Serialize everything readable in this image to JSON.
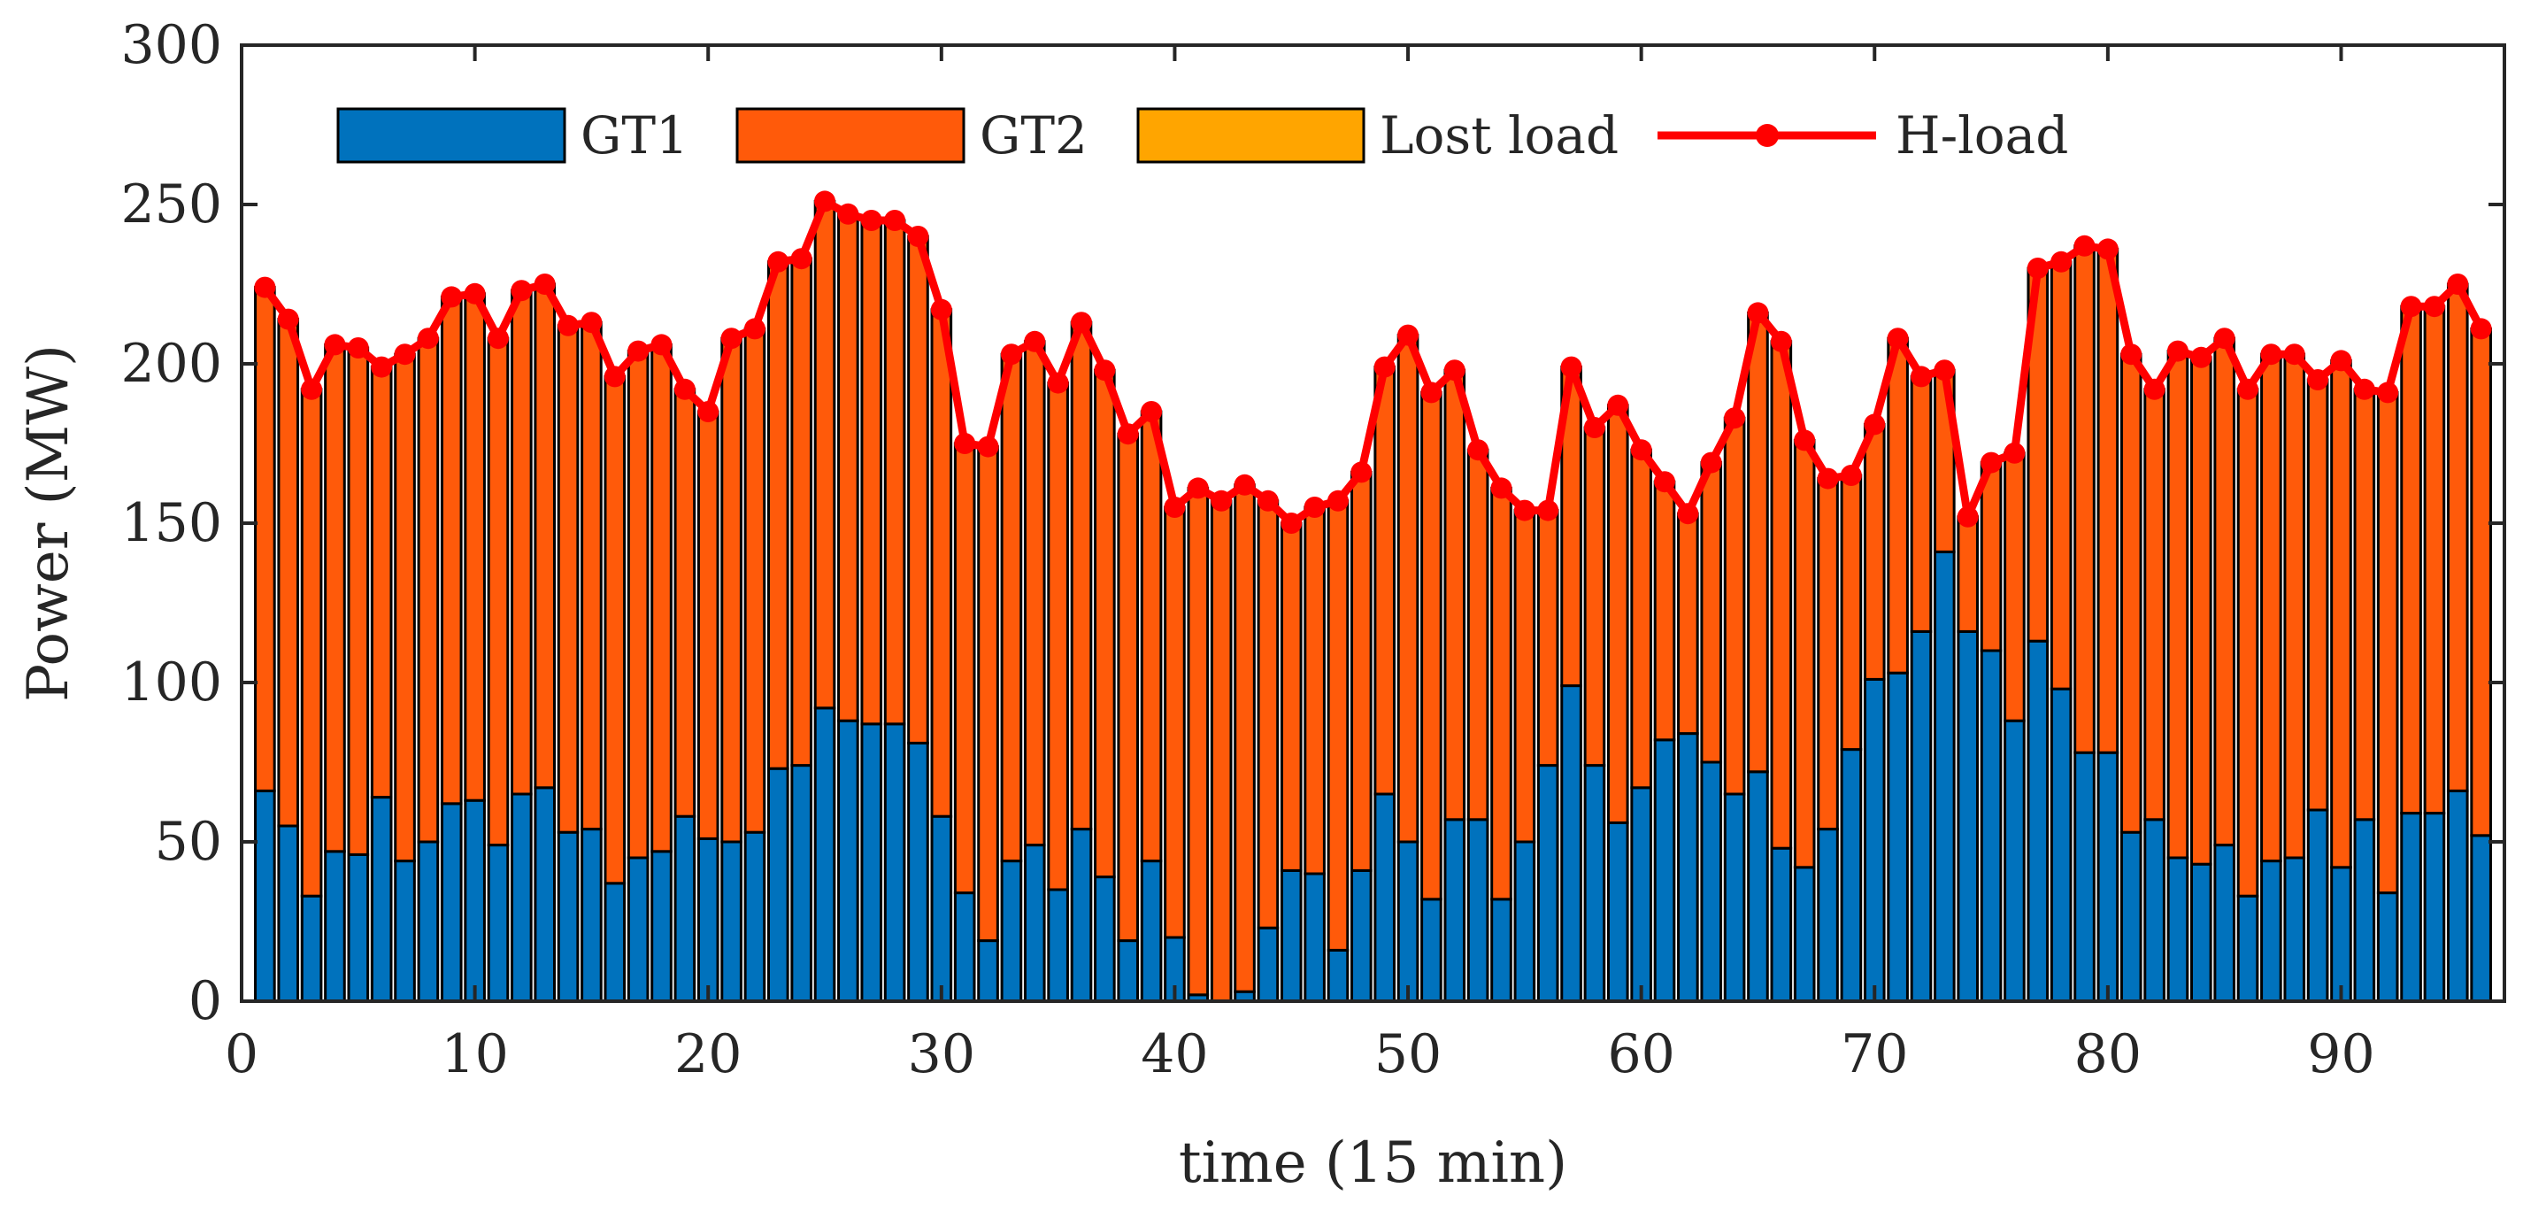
{
  "chart_data": {
    "type": "bar",
    "stacked": true,
    "title": "",
    "xlabel": "time (15 min)",
    "ylabel": "Power (MW)",
    "xlim": [
      0,
      97
    ],
    "ylim": [
      0,
      300
    ],
    "xticks": [
      0,
      10,
      20,
      30,
      40,
      50,
      60,
      70,
      80,
      90
    ],
    "yticks": [
      0,
      50,
      100,
      150,
      200,
      250,
      300
    ],
    "legend_position": "top",
    "x": [
      1,
      2,
      3,
      4,
      5,
      6,
      7,
      8,
      9,
      10,
      11,
      12,
      13,
      14,
      15,
      16,
      17,
      18,
      19,
      20,
      21,
      22,
      23,
      24,
      25,
      26,
      27,
      28,
      29,
      30,
      31,
      32,
      33,
      34,
      35,
      36,
      37,
      38,
      39,
      40,
      41,
      42,
      43,
      44,
      45,
      46,
      47,
      48,
      49,
      50,
      51,
      52,
      53,
      54,
      55,
      56,
      57,
      58,
      59,
      60,
      61,
      62,
      63,
      64,
      65,
      66,
      67,
      68,
      69,
      70,
      71,
      72,
      73,
      74,
      75,
      76,
      77,
      78,
      79,
      80,
      81,
      82,
      83,
      84,
      85,
      86,
      87,
      88,
      89,
      90,
      91,
      92,
      93,
      94,
      95,
      96
    ],
    "series": [
      {
        "name": "GT1",
        "kind": "bar",
        "color": "#0072BD",
        "values": [
          66,
          55,
          33,
          47,
          46,
          64,
          44,
          50,
          62,
          63,
          49,
          65,
          67,
          53,
          54,
          37,
          45,
          47,
          58,
          51,
          50,
          53,
          73,
          74,
          92,
          88,
          87,
          87,
          81,
          58,
          34,
          19,
          44,
          49,
          35,
          54,
          39,
          19,
          44,
          20,
          2,
          0,
          3,
          23,
          41,
          40,
          16,
          41,
          65,
          50,
          32,
          57,
          57,
          32,
          50,
          74,
          99,
          74,
          56,
          67,
          82,
          84,
          75,
          65,
          72,
          48,
          42,
          54,
          79,
          101,
          103,
          116,
          141,
          116,
          110,
          88,
          113,
          98,
          78,
          78,
          53,
          57,
          45,
          43,
          49,
          33,
          44,
          45,
          60,
          42,
          57,
          34,
          59,
          59,
          66,
          52
        ]
      },
      {
        "name": "GT2",
        "kind": "bar",
        "color": "#FF5A0A",
        "values": [
          158,
          159,
          159,
          159,
          159,
          135,
          159,
          158,
          159,
          159,
          159,
          158,
          158,
          159,
          159,
          159,
          159,
          159,
          134,
          134,
          158,
          158,
          159,
          159,
          159,
          159,
          158,
          158,
          159,
          159,
          141,
          155,
          159,
          158,
          159,
          159,
          159,
          159,
          141,
          135,
          159,
          157,
          159,
          134,
          109,
          115,
          141,
          125,
          134,
          159,
          159,
          141,
          116,
          129,
          104,
          80,
          100,
          106,
          131,
          106,
          81,
          69,
          94,
          118,
          144,
          159,
          134,
          110,
          86,
          80,
          105,
          80,
          57,
          36,
          59,
          84,
          117,
          134,
          159,
          158,
          150,
          135,
          159,
          159,
          159,
          159,
          159,
          158,
          135,
          159,
          135,
          157,
          159,
          159,
          159,
          159
        ]
      },
      {
        "name": "Lost load",
        "kind": "bar",
        "color": "#FFA500",
        "values": [
          0,
          0,
          0,
          0,
          0,
          0,
          0,
          0,
          0,
          0,
          0,
          0,
          0,
          0,
          0,
          0,
          0,
          0,
          0,
          0,
          0,
          0,
          0,
          0,
          0,
          0,
          0,
          0,
          0,
          0,
          0,
          0,
          0,
          0,
          0,
          0,
          0,
          0,
          0,
          0,
          0,
          0,
          0,
          0,
          0,
          0,
          0,
          0,
          0,
          0,
          0,
          0,
          0,
          0,
          0,
          0,
          0,
          0,
          0,
          0,
          0,
          0,
          0,
          0,
          0,
          0,
          0,
          0,
          0,
          0,
          0,
          0,
          0,
          0,
          0,
          0,
          0,
          0,
          0,
          0,
          0,
          0,
          0,
          0,
          0,
          0,
          0,
          0,
          0,
          0,
          0,
          0,
          0,
          0,
          0,
          0
        ]
      },
      {
        "name": "H-load",
        "kind": "line",
        "color": "#FF0000",
        "values": [
          224,
          214,
          192,
          206,
          205,
          199,
          203,
          208,
          221,
          222,
          208,
          223,
          225,
          212,
          213,
          196,
          204,
          206,
          192,
          185,
          208,
          211,
          232,
          233,
          251,
          247,
          245,
          245,
          240,
          217,
          175,
          174,
          203,
          207,
          194,
          213,
          198,
          178,
          185,
          155,
          161,
          157,
          162,
          157,
          150,
          155,
          157,
          166,
          199,
          209,
          191,
          198,
          173,
          161,
          154,
          154,
          199,
          180,
          187,
          173,
          163,
          153,
          169,
          183,
          216,
          207,
          176,
          164,
          165,
          181,
          208,
          196,
          198,
          152,
          169,
          172,
          230,
          232,
          237,
          236,
          203,
          192,
          204,
          202,
          208,
          192,
          203,
          203,
          195,
          201,
          192,
          191,
          218,
          218,
          225,
          211
        ]
      }
    ]
  }
}
